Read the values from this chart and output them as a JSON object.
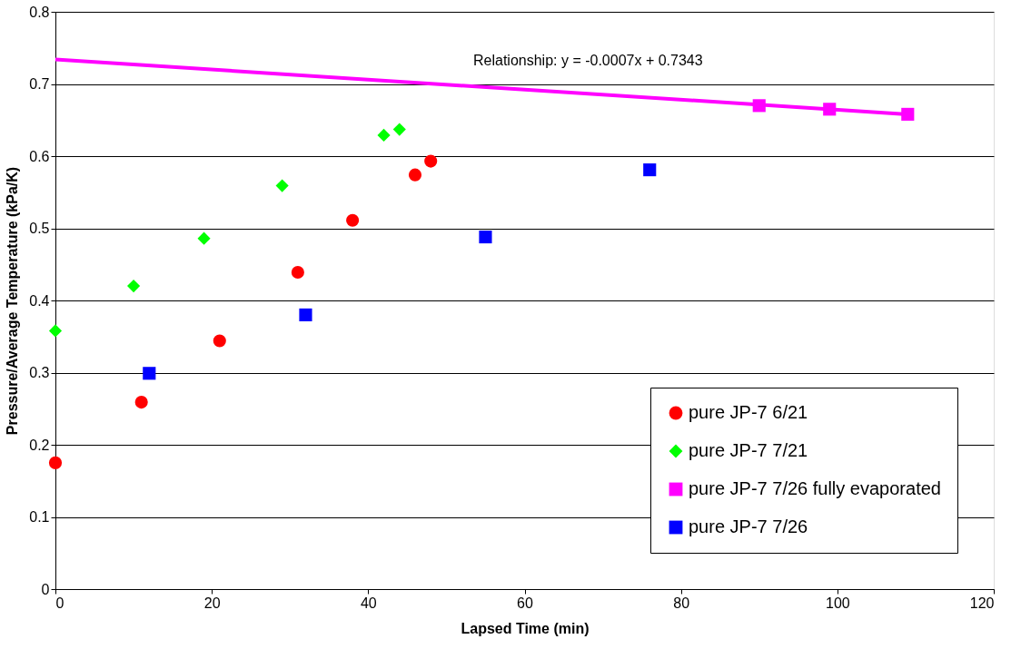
{
  "chart_data": {
    "type": "scatter",
    "xlabel": "Lapsed Time (min)",
    "ylabel": "Pressure/Average Temperature (kPa/K)",
    "annotations": [
      "Relationship: y = -0.0007x + 0.7343"
    ],
    "xlim": [
      0,
      120
    ],
    "xticks": [
      0,
      20,
      40,
      60,
      80,
      100,
      120
    ],
    "ylim": [
      0,
      0.8
    ],
    "yticks": [
      0,
      0.1,
      0.2,
      0.3,
      0.4,
      0.5,
      0.6,
      0.7,
      0.8
    ],
    "grid": "y",
    "legend": "bottom right",
    "series": [
      {
        "name": "pure JP-7 6/21",
        "color": "#ff0000",
        "marker": "circle",
        "x": [
          0,
          11,
          21,
          31,
          38,
          46,
          48
        ],
        "values": [
          0.175,
          0.259,
          0.344,
          0.439,
          0.511,
          0.574,
          0.593
        ]
      },
      {
        "name": "pure JP-7 7/21",
        "color": "#00ff00",
        "marker": "diamond",
        "x": [
          0,
          10,
          19,
          29,
          42,
          44
        ],
        "values": [
          0.358,
          0.42,
          0.486,
          0.559,
          0.629,
          0.637
        ]
      },
      {
        "name": "pure JP-7 7/26 fully evaporated",
        "color": "#ff00ff",
        "marker": "square",
        "x": [
          90,
          99,
          109
        ],
        "values": [
          0.67,
          0.665,
          0.658
        ]
      },
      {
        "name": "pure JP-7 7/26",
        "color": "#0000ff",
        "marker": "square",
        "x": [
          12,
          32,
          55,
          76
        ],
        "values": [
          0.299,
          0.38,
          0.488,
          0.581
        ]
      },
      {
        "type": "line",
        "color": "#ff00ff",
        "x": [
          0,
          109
        ],
        "values": [
          0.734,
          0.658
        ],
        "line_style": "solid"
      }
    ]
  }
}
